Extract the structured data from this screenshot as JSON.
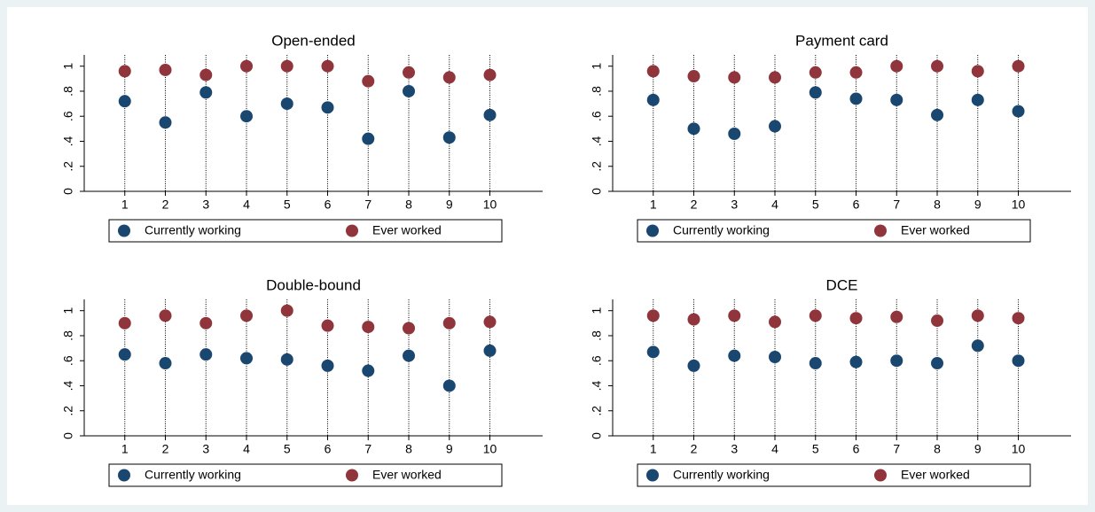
{
  "chart_data": [
    {
      "type": "scatter",
      "title": "Open-ended",
      "x": [
        1,
        2,
        3,
        4,
        5,
        6,
        7,
        8,
        9,
        10
      ],
      "series": [
        {
          "name": "Currently working",
          "color": "#1a476f",
          "values": [
            0.72,
            0.55,
            0.79,
            0.6,
            0.7,
            0.67,
            0.42,
            0.8,
            0.43,
            0.61
          ]
        },
        {
          "name": "Ever worked",
          "color": "#90353b",
          "values": [
            0.96,
            0.97,
            0.93,
            1.0,
            1.0,
            1.0,
            0.88,
            0.95,
            0.91,
            0.93
          ]
        }
      ],
      "xlim": [
        0,
        11.3
      ],
      "xticks": [
        1,
        2,
        3,
        4,
        5,
        6,
        7,
        8,
        9,
        10
      ],
      "ylim": [
        0,
        1.09
      ],
      "yticks": [
        0,
        {
          "value": 0.2,
          "label": ".2"
        },
        {
          "value": 0.4,
          "label": ".4"
        },
        {
          "value": 0.6,
          "label": ".6"
        },
        {
          "value": 0.8,
          "label": ".8"
        },
        1
      ],
      "legend": "bottom"
    },
    {
      "type": "scatter",
      "title": "Payment card",
      "x": [
        1,
        2,
        3,
        4,
        5,
        6,
        7,
        8,
        9,
        10
      ],
      "series": [
        {
          "name": "Currently working",
          "color": "#1a476f",
          "values": [
            0.73,
            0.5,
            0.46,
            0.52,
            0.79,
            0.74,
            0.73,
            0.61,
            0.73,
            0.64
          ]
        },
        {
          "name": "Ever worked",
          "color": "#90353b",
          "values": [
            0.96,
            0.92,
            0.91,
            0.91,
            0.95,
            0.95,
            1.0,
            1.0,
            0.96,
            1.0
          ]
        }
      ],
      "xlim": [
        0,
        11.3
      ],
      "xticks": [
        1,
        2,
        3,
        4,
        5,
        6,
        7,
        8,
        9,
        10
      ],
      "ylim": [
        0,
        1.09
      ],
      "yticks": [
        0,
        {
          "value": 0.2,
          "label": ".2"
        },
        {
          "value": 0.4,
          "label": ".4"
        },
        {
          "value": 0.6,
          "label": ".6"
        },
        {
          "value": 0.8,
          "label": ".8"
        },
        1
      ],
      "legend": "bottom"
    },
    {
      "type": "scatter",
      "title": "Double-bound",
      "x": [
        1,
        2,
        3,
        4,
        5,
        6,
        7,
        8,
        9,
        10
      ],
      "series": [
        {
          "name": "Currently working",
          "color": "#1a476f",
          "values": [
            0.65,
            0.58,
            0.65,
            0.62,
            0.61,
            0.56,
            0.52,
            0.64,
            0.4,
            0.68
          ]
        },
        {
          "name": "Ever worked",
          "color": "#90353b",
          "values": [
            0.9,
            0.96,
            0.9,
            0.96,
            1.0,
            0.88,
            0.87,
            0.86,
            0.9,
            0.91
          ]
        }
      ],
      "xlim": [
        0,
        11.3
      ],
      "xticks": [
        1,
        2,
        3,
        4,
        5,
        6,
        7,
        8,
        9,
        10
      ],
      "ylim": [
        0,
        1.09
      ],
      "yticks": [
        0,
        {
          "value": 0.2,
          "label": ".2"
        },
        {
          "value": 0.4,
          "label": ".4"
        },
        {
          "value": 0.6,
          "label": ".6"
        },
        {
          "value": 0.8,
          "label": ".8"
        },
        1
      ],
      "legend": "bottom"
    },
    {
      "type": "scatter",
      "title": "DCE",
      "x": [
        1,
        2,
        3,
        4,
        5,
        6,
        7,
        8,
        9,
        10
      ],
      "series": [
        {
          "name": "Currently working",
          "color": "#1a476f",
          "values": [
            0.67,
            0.56,
            0.64,
            0.63,
            0.58,
            0.59,
            0.6,
            0.58,
            0.72,
            0.6
          ]
        },
        {
          "name": "Ever worked",
          "color": "#90353b",
          "values": [
            0.96,
            0.93,
            0.96,
            0.91,
            0.96,
            0.94,
            0.95,
            0.92,
            0.96,
            0.94
          ]
        }
      ],
      "xlim": [
        0,
        11.3
      ],
      "xticks": [
        1,
        2,
        3,
        4,
        5,
        6,
        7,
        8,
        9,
        10
      ],
      "ylim": [
        0,
        1.09
      ],
      "yticks": [
        0,
        {
          "value": 0.2,
          "label": ".2"
        },
        {
          "value": 0.4,
          "label": ".4"
        },
        {
          "value": 0.6,
          "label": ".6"
        },
        {
          "value": 0.8,
          "label": ".8"
        },
        1
      ],
      "legend": "bottom"
    }
  ]
}
